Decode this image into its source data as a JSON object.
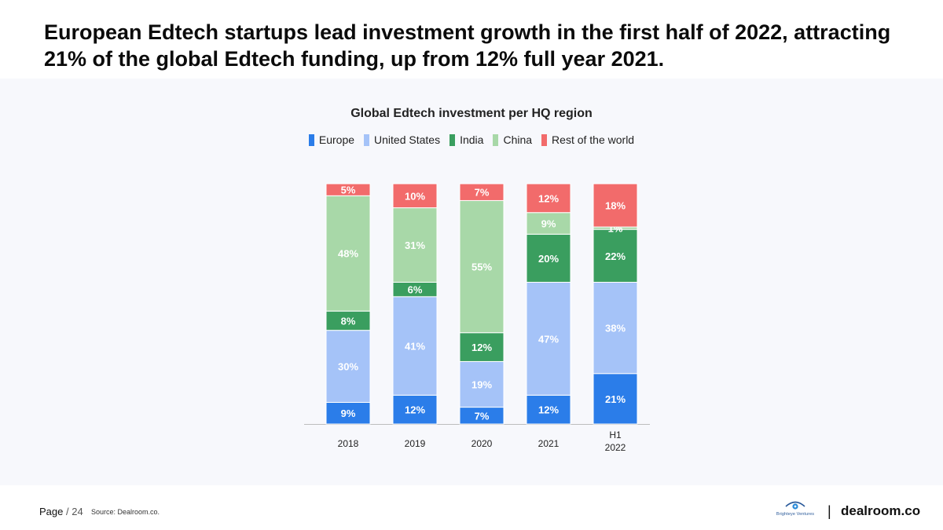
{
  "headline": "European Edtech startups lead investment growth in the first half of 2022, attracting 21% of the global Edtech funding, up from 12% full year 2021.",
  "chart_data": {
    "type": "bar",
    "stacked": true,
    "title": "Global Edtech investment per HQ region",
    "categories": [
      {
        "name": "2018",
        "lines": [
          "2018"
        ]
      },
      {
        "name": "2019",
        "lines": [
          "2019"
        ]
      },
      {
        "name": "2020",
        "lines": [
          "2020"
        ]
      },
      {
        "name": "2021",
        "lines": [
          "2021"
        ]
      },
      {
        "name": "H1 2022",
        "lines": [
          "H1",
          "2022"
        ]
      }
    ],
    "series": [
      {
        "name": "Europe",
        "color": "#2b7de9",
        "values": [
          9,
          12,
          7,
          12,
          21
        ],
        "labels": [
          "9%",
          "12%",
          "7%",
          "12%",
          "21%"
        ],
        "label_color": "#ffffff"
      },
      {
        "name": "United States",
        "color": "#a5c3f8",
        "values": [
          30,
          41,
          19,
          47,
          38
        ],
        "labels": [
          "30%",
          "41%",
          "19%",
          "47%",
          "38%"
        ],
        "label_color": "#ffffff"
      },
      {
        "name": "India",
        "color": "#3a9e5f",
        "values": [
          8,
          6,
          12,
          20,
          22
        ],
        "labels": [
          "8%",
          "6%",
          "12%",
          "20%",
          "22%"
        ],
        "label_color": "#ffffff"
      },
      {
        "name": "China",
        "color": "#a8d8a8",
        "values": [
          48,
          31,
          55,
          9,
          1
        ],
        "labels": [
          "48%",
          "31%",
          "55%",
          "9%",
          "1%"
        ],
        "label_color": "#ffffff"
      },
      {
        "name": "Rest of the world",
        "color": "#f26b6b",
        "values": [
          5,
          10,
          7,
          12,
          18
        ],
        "labels": [
          "5%",
          "10%",
          "7%",
          "12%",
          "18%"
        ],
        "label_color": "#ffffff"
      }
    ],
    "ylim": [
      0,
      100
    ],
    "xlabel": "",
    "ylabel": "",
    "grid": false,
    "legend": "top-center"
  },
  "footer": {
    "page_label": "Page",
    "page_number": "/ 24",
    "source": "Source: Dealroom.co.",
    "partner_logo": "Brighteye Ventures",
    "separator": "|",
    "brand": "dealroom.co"
  }
}
